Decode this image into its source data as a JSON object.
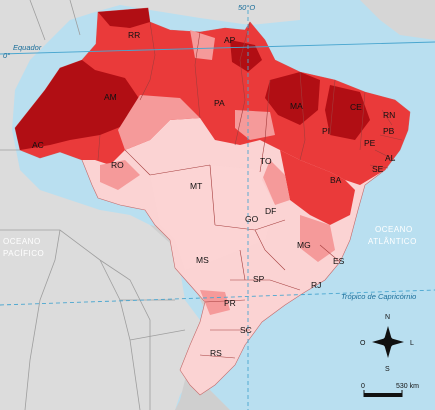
{
  "map": {
    "colors": {
      "ocean": "#b9dff0",
      "land_neighbors": "#dcdcdc",
      "brazil_light": "#fbd3d3",
      "brazil_medium": "#f59a9a",
      "brazil_strong": "#ea3a3a",
      "brazil_dark": "#b10e14",
      "reference_lines": "#4aa6cf"
    },
    "lines": {
      "equator": "Equador",
      "equator_degree": "0°",
      "meridian": "50°O",
      "tropic": "Trópico de Capricórnio"
    },
    "oceans": {
      "atlantic_line1": "OCEANO",
      "atlantic_line2": "ATLÂNTICO",
      "pacific_line1": "OCEANO",
      "pacific_line2": "PACÍFICO"
    },
    "states": [
      "RR",
      "AP",
      "AM",
      "PA",
      "MA",
      "CE",
      "RN",
      "PB",
      "PI",
      "PE",
      "AL",
      "SE",
      "AC",
      "RO",
      "TO",
      "BA",
      "MT",
      "DF",
      "GO",
      "MG",
      "ES",
      "MS",
      "SP",
      "RJ",
      "PR",
      "SC",
      "RS"
    ],
    "compass": {
      "n": "N",
      "s": "S",
      "l": "L",
      "o": "O"
    },
    "scale": {
      "start": "0",
      "end": "530 km"
    }
  }
}
